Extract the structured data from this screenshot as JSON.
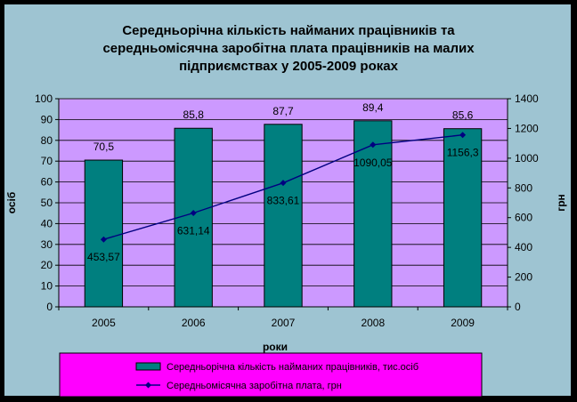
{
  "chart_data": {
    "type": "bar+line",
    "title_lines": [
      "Середньорічна кількість найманих працівників та",
      "середньомісячна заробітна плата працівників на малих",
      "підприємствах у 2005-2009 роках"
    ],
    "categories": [
      "2005",
      "2006",
      "2007",
      "2008",
      "2009"
    ],
    "series": [
      {
        "name": "Середньорічна кількість найманих працівників, тис.осіб",
        "type": "bar",
        "axis": "left",
        "values": [
          70.5,
          85.8,
          87.7,
          89.4,
          85.6
        ],
        "labels": [
          "70,5",
          "85,8",
          "87,7",
          "89,4",
          "85,6"
        ],
        "color": "#007f7f"
      },
      {
        "name": "Середньомісячна заробітна плата, грн",
        "type": "line",
        "axis": "right",
        "values": [
          453.57,
          631.14,
          833.61,
          1090.05,
          1156.3
        ],
        "labels": [
          "453,57",
          "631,14",
          "833,61",
          "1090,05",
          "1156,3"
        ],
        "color": "#000080"
      }
    ],
    "xlabel": "роки",
    "ylabel_left": "осіб",
    "ylabel_right": "грн",
    "ylim_left": [
      0,
      100
    ],
    "ylim_right": [
      0,
      1400
    ],
    "yticks_left": [
      0,
      10,
      20,
      30,
      40,
      50,
      60,
      70,
      80,
      90,
      100
    ],
    "yticks_right": [
      0,
      200,
      400,
      600,
      800,
      1000,
      1200,
      1400
    ],
    "plot_background": "#cc99ff",
    "legend_background": "#ff00ff",
    "chart_background": "#9ec4d2",
    "legend_position": "bottom",
    "grid": true
  }
}
